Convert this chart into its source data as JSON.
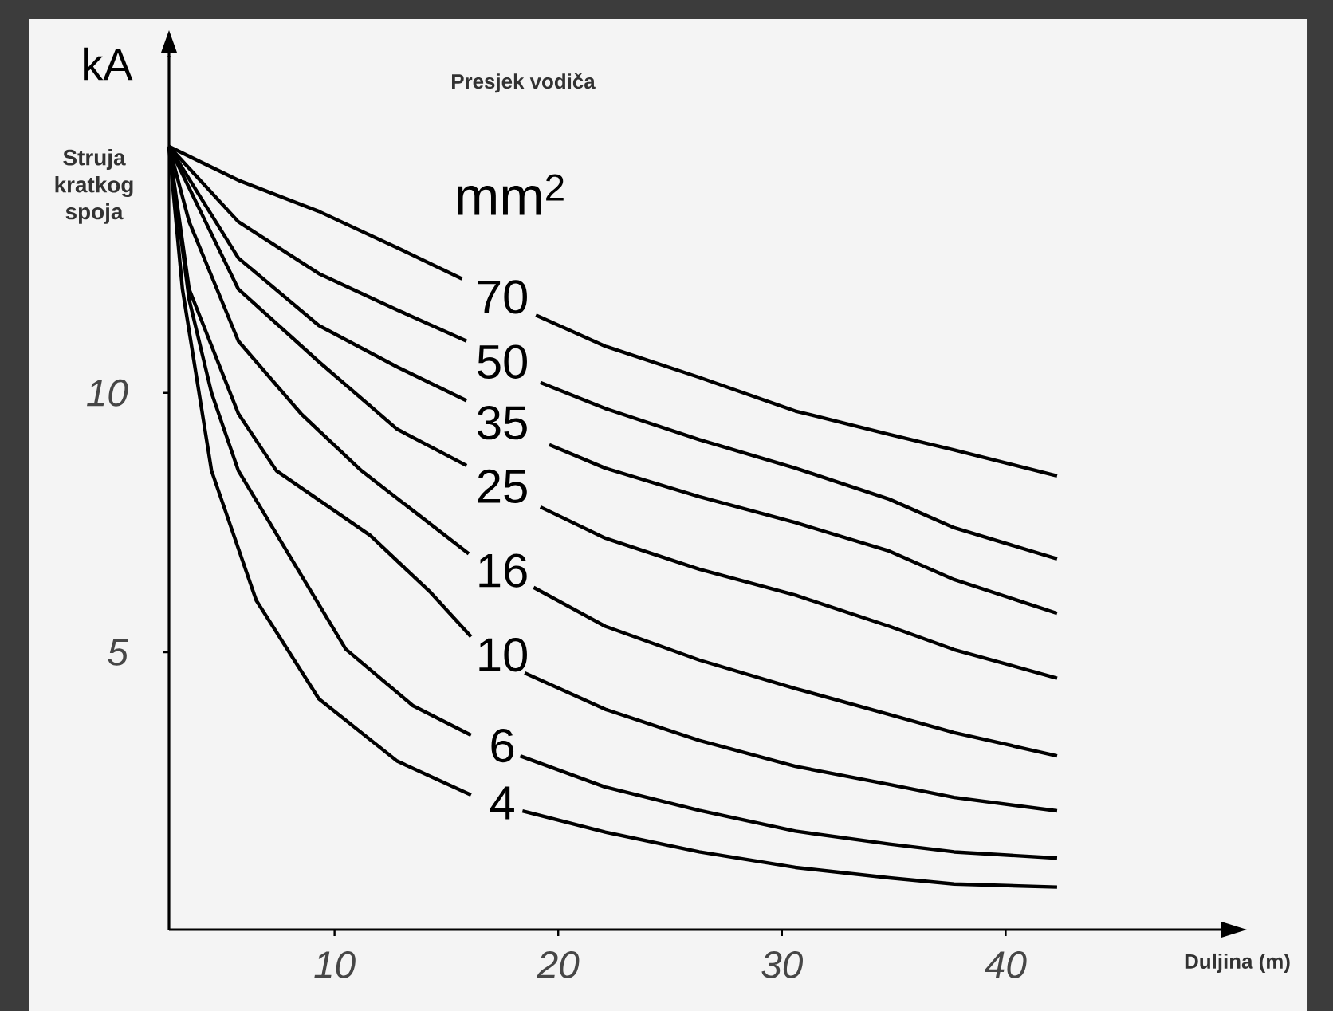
{
  "chart_data": {
    "type": "line",
    "ylabel": "Struja kratkog spoja",
    "xlabel": "Duljina (m)",
    "legend_title": "Presjek vodiča",
    "annotations": [
      "kA",
      "mm$^{2}$"
    ],
    "xlim": [
      2.6,
      50.5
    ],
    "ylim": [
      -0.35,
      16.5
    ],
    "xticks": [
      10,
      20,
      30,
      40
    ],
    "yticks": [
      5,
      10
    ],
    "grid": false,
    "legend": false,
    "marker": "none",
    "line_style": "solid",
    "series": [
      {
        "name": "70",
        "color": "#000000",
        "x": [
          2.6,
          5.7,
          9.3,
          12.8,
          15.7,
          17.5,
          19.0,
          22.1,
          26.3,
          30.6,
          34.8,
          37.7,
          42.3
        ],
        "values": [
          14.75,
          14.1,
          13.5,
          12.8,
          12.2,
          null,
          11.5,
          10.9,
          10.3,
          9.65,
          9.2,
          8.9,
          8.4
        ]
      },
      {
        "name": "50",
        "color": "#000000",
        "x": [
          2.6,
          5.7,
          9.3,
          12.8,
          15.9,
          17.5,
          19.2,
          22.1,
          26.3,
          30.6,
          34.8,
          37.7,
          42.3
        ],
        "values": [
          14.75,
          13.3,
          12.3,
          11.6,
          11.0,
          null,
          10.2,
          9.7,
          9.1,
          8.55,
          7.95,
          7.4,
          6.8
        ]
      },
      {
        "name": "35",
        "color": "#000000",
        "x": [
          2.6,
          5.7,
          9.3,
          12.8,
          15.9,
          17.5,
          19.6,
          22.1,
          26.3,
          30.6,
          34.8,
          37.7,
          42.3
        ],
        "values": [
          14.75,
          12.6,
          11.3,
          10.5,
          9.85,
          null,
          9.0,
          8.55,
          8.0,
          7.5,
          6.95,
          6.4,
          5.75
        ]
      },
      {
        "name": "25",
        "color": "#000000",
        "x": [
          2.6,
          5.7,
          9.3,
          12.8,
          15.9,
          17.5,
          19.2,
          22.1,
          26.3,
          30.6,
          34.8,
          37.7,
          42.3
        ],
        "values": [
          14.75,
          12.0,
          10.6,
          9.3,
          8.6,
          null,
          7.8,
          7.2,
          6.6,
          6.1,
          5.5,
          5.05,
          4.5
        ]
      },
      {
        "name": "16",
        "color": "#000000",
        "x": [
          2.6,
          3.5,
          5.7,
          8.5,
          11.2,
          16.0,
          17.5,
          18.9,
          22.1,
          26.3,
          30.6,
          34.8,
          37.7,
          42.3
        ],
        "values": [
          14.75,
          13.3,
          11.0,
          9.6,
          8.5,
          6.9,
          null,
          6.25,
          5.5,
          4.85,
          4.3,
          3.8,
          3.45,
          3.0
        ]
      },
      {
        "name": "10",
        "color": "#000000",
        "x": [
          2.6,
          3.5,
          5.7,
          7.4,
          11.6,
          14.3,
          16.1,
          17.5,
          18.5,
          22.1,
          26.3,
          30.6,
          34.8,
          37.7,
          42.3
        ],
        "values": [
          14.75,
          12.0,
          9.6,
          8.5,
          7.25,
          6.15,
          5.3,
          null,
          4.6,
          3.9,
          3.3,
          2.8,
          2.45,
          2.2,
          1.94
        ]
      },
      {
        "name": "6",
        "color": "#000000",
        "x": [
          2.6,
          3.5,
          4.5,
          5.7,
          10.5,
          13.5,
          16.1,
          17.5,
          18.3,
          22.1,
          26.3,
          30.6,
          34.8,
          37.7,
          42.3
        ],
        "values": [
          14.75,
          11.8,
          10.0,
          8.5,
          5.06,
          3.97,
          3.4,
          null,
          3.0,
          2.4,
          1.95,
          1.55,
          1.3,
          1.15,
          1.03
        ]
      },
      {
        "name": "4",
        "color": "#000000",
        "x": [
          2.6,
          3.2,
          4.5,
          6.5,
          9.3,
          12.8,
          16.1,
          17.5,
          18.4,
          22.1,
          26.3,
          30.6,
          34.8,
          37.7,
          42.3
        ],
        "values": [
          14.75,
          12.0,
          8.5,
          6.0,
          4.1,
          2.9,
          2.25,
          null,
          1.94,
          1.53,
          1.15,
          0.85,
          0.65,
          0.53,
          0.47
        ]
      }
    ]
  }
}
